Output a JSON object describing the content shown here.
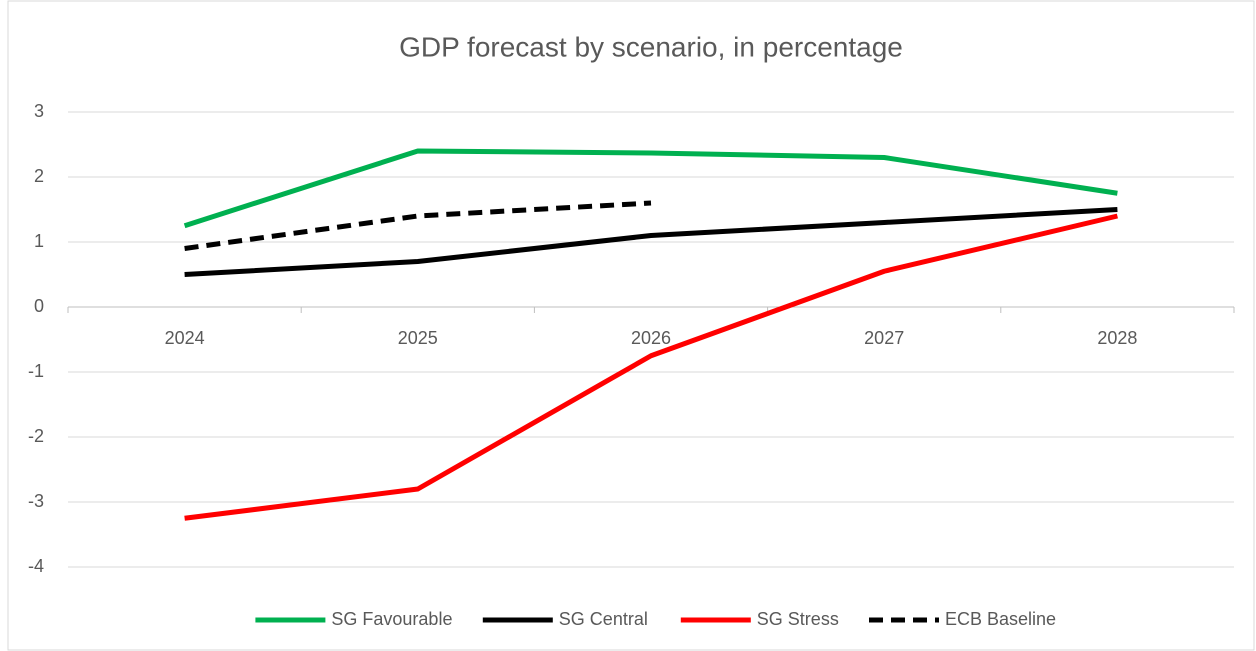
{
  "chart_data": {
    "type": "line",
    "title": "GDP forecast by scenario, in percentage",
    "categories": [
      "2024",
      "2025",
      "2026",
      "2027",
      "2028"
    ],
    "series": [
      {
        "name": "SG Favourable",
        "color": "#00b050",
        "dash": false,
        "values": [
          1.25,
          2.4,
          2.37,
          2.3,
          1.75
        ]
      },
      {
        "name": "SG Central",
        "color": "#000000",
        "dash": false,
        "values": [
          0.5,
          0.7,
          1.1,
          1.3,
          1.5
        ]
      },
      {
        "name": "SG Stress",
        "color": "#ff0000",
        "dash": false,
        "values": [
          -3.25,
          -2.8,
          -0.75,
          0.55,
          1.4
        ]
      },
      {
        "name": "ECB Baseline",
        "color": "#000000",
        "dash": true,
        "values": [
          0.9,
          1.4,
          1.6,
          null,
          null
        ]
      }
    ],
    "ylim": [
      -4,
      3
    ],
    "yticks": [
      -4,
      -3,
      -2,
      -1,
      0,
      1,
      2,
      3
    ],
    "grid": true,
    "legend": "bottom"
  }
}
